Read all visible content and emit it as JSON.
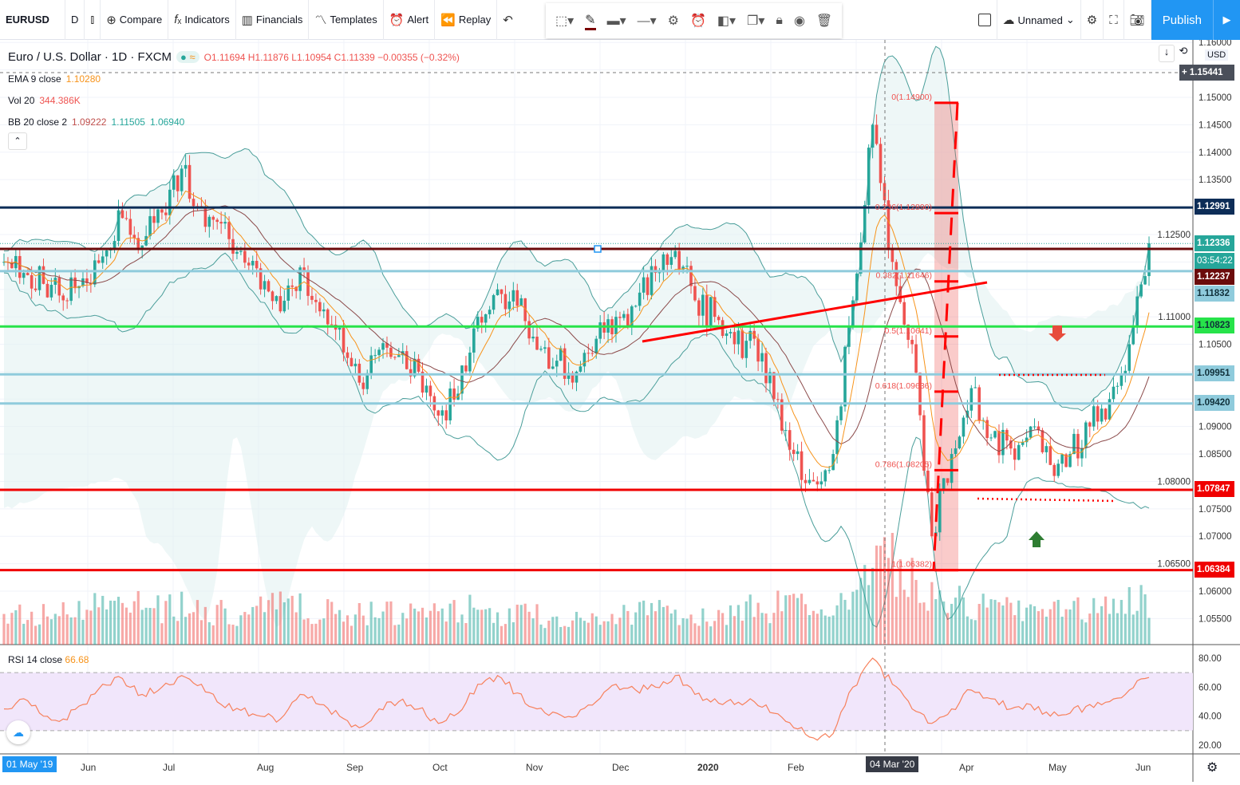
{
  "toolbar": {
    "symbol": "EURUSD",
    "interval": "D",
    "compare": "Compare",
    "indicators": "Indicators",
    "financials": "Financials",
    "templates": "Templates",
    "alert": "Alert",
    "replay": "Replay",
    "layout_name": "Unnamed",
    "publish": "Publish"
  },
  "legend": {
    "title": "Euro / U.S. Dollar · 1D · FXCM",
    "ohlc": "O1.11694 H1.11876 L1.10954 C1.11339 −0.00355 (−0.32%)",
    "ema_label": "EMA 9 close",
    "ema_value": "1.10280",
    "vol_label": "Vol 20",
    "vol_value": "344.386K",
    "bb_label": "BB 20 close 2",
    "bb_basis": "1.09222",
    "bb_upper": "1.11505",
    "bb_lower": "1.06940",
    "rsi_label": "RSI 14 close",
    "rsi_value": "66.68"
  },
  "price_axis": {
    "currency": "USD",
    "ticks": [
      "1.16000",
      "1.15000",
      "1.14500",
      "1.14000",
      "1.13500",
      "1.12500",
      "1.11000",
      "1.10500",
      "1.09000",
      "1.08500",
      "1.08000",
      "1.07500",
      "1.07000",
      "1.06500",
      "1.06000",
      "1.05500"
    ],
    "crosshair": "1.15441",
    "countdown": "03:54:22",
    "labels": [
      {
        "text": "1.12991",
        "color": "#0d2d57"
      },
      {
        "text": "1.12336",
        "color": "#26a69a"
      },
      {
        "text": "1.12237",
        "color": "#6b0b0b"
      },
      {
        "text": "1.11832",
        "color": "#8fcbdc"
      },
      {
        "text": "1.10823",
        "color": "#27e34a"
      },
      {
        "text": "1.09951",
        "color": "#8fcbdc"
      },
      {
        "text": "1.09420",
        "color": "#8fcbdc"
      },
      {
        "text": "1.07847",
        "color": "#f00000"
      },
      {
        "text": "1.06384",
        "color": "#f00000"
      }
    ]
  },
  "horizontal_lines": [
    {
      "price": 1.12991,
      "color": "#0d2d57"
    },
    {
      "price": 1.12237,
      "color": "#6b0b0b"
    },
    {
      "price": 1.11832,
      "color": "#8fcbdc"
    },
    {
      "price": 1.10823,
      "color": "#27e34a"
    },
    {
      "price": 1.09951,
      "color": "#8fcbdc"
    },
    {
      "price": 1.0942,
      "color": "#8fcbdc"
    },
    {
      "price": 1.07847,
      "color": "#f00000"
    },
    {
      "price": 1.06384,
      "color": "#f00000"
    }
  ],
  "fibonacci": [
    {
      "text": "0(1.14900)",
      "price": 1.149
    },
    {
      "text": "0.236(1.12890)",
      "price": 1.1289
    },
    {
      "text": "0.382(1.11646)",
      "price": 1.11646
    },
    {
      "text": "0.5(1.10641)",
      "price": 1.10641
    },
    {
      "text": "0.618(1.09636)",
      "price": 1.09636
    },
    {
      "text": "0.786(1.08205)",
      "price": 1.08205
    },
    {
      "text": "1(1.06382)",
      "price": 1.06382
    }
  ],
  "rsi_axis": {
    "ticks": [
      "80.00",
      "60.00",
      "40.00",
      "20.00"
    ]
  },
  "time_axis": {
    "start": "01 May '19",
    "cursor": "04 Mar '20",
    "ticks": [
      "Jun",
      "Jul",
      "Aug",
      "Sep",
      "Oct",
      "Nov",
      "Dec",
      "2020",
      "Feb",
      "Apr",
      "May",
      "Jun"
    ]
  },
  "colors": {
    "up": "#26a69a",
    "down": "#ef5350",
    "ema": "#f7931a",
    "bb": "#4a9e9a",
    "rsi": "#f7815c",
    "accent": "#2196f3"
  },
  "chart_data": {
    "type": "candlestick",
    "symbol": "EURUSD",
    "interval": "1D",
    "x_range": [
      "01 May '19",
      "Jun '20"
    ],
    "ylim": [
      1.05,
      1.16
    ],
    "weekly_close": [
      1.12,
      1.118,
      1.116,
      1.113,
      1.117,
      1.121,
      1.128,
      1.123,
      1.129,
      1.137,
      1.13,
      1.127,
      1.122,
      1.115,
      1.111,
      1.119,
      1.111,
      1.108,
      1.098,
      1.104,
      1.103,
      1.1,
      1.092,
      1.096,
      1.11,
      1.115,
      1.112,
      1.104,
      1.102,
      1.1,
      1.106,
      1.11,
      1.112,
      1.118,
      1.122,
      1.113,
      1.11,
      1.105,
      1.106,
      1.095,
      1.085,
      1.08,
      1.085,
      1.113,
      1.145,
      1.12,
      1.105,
      1.07,
      1.085,
      1.097,
      1.088,
      1.086,
      1.09,
      1.083,
      1.085,
      1.09,
      1.095,
      1.105,
      1.1234
    ],
    "weekly_volume_k": [
      180,
      190,
      170,
      200,
      210,
      220,
      200,
      230,
      210,
      240,
      200,
      190,
      180,
      200,
      220,
      210,
      200,
      190,
      180,
      200,
      170,
      180,
      190,
      200,
      210,
      190,
      180,
      170,
      160,
      150,
      170,
      190,
      200,
      210,
      200,
      190,
      180,
      200,
      210,
      220,
      230,
      250,
      260,
      300,
      420,
      460,
      400,
      330,
      260,
      230,
      210,
      200,
      190,
      200,
      210,
      220,
      230,
      240,
      250
    ],
    "weekly_rsi": [
      45,
      52,
      40,
      38,
      48,
      62,
      66,
      55,
      60,
      68,
      62,
      48,
      44,
      40,
      38,
      55,
      48,
      40,
      32,
      45,
      50,
      45,
      35,
      42,
      62,
      68,
      56,
      45,
      42,
      40,
      50,
      62,
      58,
      60,
      68,
      55,
      52,
      48,
      50,
      42,
      32,
      25,
      28,
      60,
      80,
      62,
      45,
      35,
      45,
      58,
      52,
      45,
      48,
      40,
      42,
      48,
      50,
      58,
      66.68
    ],
    "rsi_ylim": [
      15,
      85
    ],
    "rsi_bands": [
      30,
      70
    ]
  }
}
